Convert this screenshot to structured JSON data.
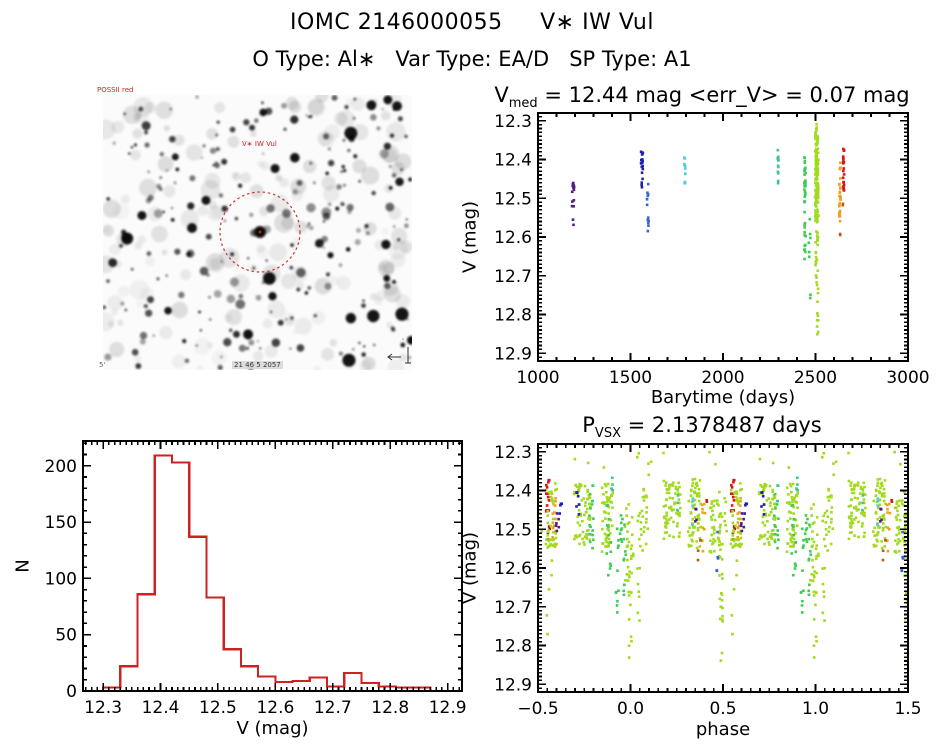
{
  "page": {
    "title": "IOMC 2146000055     V∗ IW Vul",
    "subtitle": "O Type: Al∗   Var Type: EA/D   SP Type: A1"
  },
  "colors": {
    "purple": "#501E82",
    "navy": "#1E1EB4",
    "blue": "#3C64D2",
    "cyan": "#55CADC",
    "teal": "#3CC88C",
    "green": "#3CCC50",
    "chartreuse": "#A2DA1E",
    "orange": "#EFA01E",
    "darkorange": "#BE5A14",
    "red": "#DC1414",
    "darkred": "#A01414",
    "hist": "#CC2222",
    "axis": "#000000",
    "finder_circle": "#CC3333"
  },
  "finder_chart": {
    "label_top_left": "POSSII red",
    "label_target": "V∗ IW Vul",
    "label_bottom": "21 46 5 2057",
    "label_scale": "5'"
  },
  "chart_data": [
    {
      "type": "scatter",
      "name": "lightcurve",
      "title": {
        "base": "V",
        "sub": "med",
        "rest": " = 12.44 mag <err_V> = 0.07 mag"
      },
      "xlabel": "Barytime (days)",
      "ylabel": "V (mag)",
      "xlim": [
        1000,
        3000
      ],
      "ylim": [
        12.28,
        12.92
      ],
      "y_inverted_mag_axis": true,
      "xticks": {
        "vals": [
          1000,
          1500,
          2000,
          2500,
          3000
        ],
        "labels": [
          "1000",
          "1500",
          "2000",
          "2500",
          "3000"
        ],
        "minor": 100
      },
      "yticks": {
        "vals": [
          12.3,
          12.4,
          12.5,
          12.6,
          12.7,
          12.8,
          12.9
        ],
        "labels": [
          "12.3",
          "12.4",
          "12.5",
          "12.6",
          "12.7",
          "12.8",
          "12.9"
        ],
        "minor": 0.01
      },
      "clusters": [
        {
          "x": 1190,
          "dx": 6,
          "y": [
            12.455,
            12.535
          ],
          "n": 13,
          "c": "purple"
        },
        {
          "x": 1191,
          "dx": 3,
          "y": [
            12.555,
            12.575
          ],
          "n": 2,
          "c": "purple"
        },
        {
          "x": 1562,
          "dx": 5,
          "y": [
            12.375,
            12.43
          ],
          "n": 14,
          "c": "navy"
        },
        {
          "x": 1563,
          "dx": 4,
          "y": [
            12.43,
            12.475
          ],
          "n": 5,
          "c": "navy"
        },
        {
          "x": 1594,
          "dx": 3,
          "y": [
            12.46,
            12.5
          ],
          "n": 4,
          "c": "blue"
        },
        {
          "x": 1596,
          "dx": 3,
          "y": [
            12.545,
            12.585
          ],
          "n": 6,
          "c": "blue"
        },
        {
          "x": 1589,
          "dx": 2,
          "y": [
            12.5,
            12.53
          ],
          "n": 2,
          "c": "blue"
        },
        {
          "x": 1794,
          "dx": 4,
          "y": [
            12.385,
            12.465
          ],
          "n": 11,
          "c": "cyan"
        },
        {
          "x": 2297,
          "dx": 4,
          "y": [
            12.375,
            12.44
          ],
          "n": 10,
          "c": "teal"
        },
        {
          "x": 2299,
          "dx": 2,
          "y": [
            12.455,
            12.47
          ],
          "n": 2,
          "c": "teal"
        },
        {
          "x": 2443,
          "dx": 4,
          "y": [
            12.39,
            12.52
          ],
          "n": 28,
          "c": "green"
        },
        {
          "x": 2443,
          "dx": 4,
          "y": [
            12.52,
            12.66
          ],
          "n": 13,
          "c": "green"
        },
        {
          "x": 2468,
          "dx": 5,
          "y": [
            12.55,
            12.78
          ],
          "n": 8,
          "c": "green"
        },
        {
          "x": 2507,
          "dx": 9,
          "y": [
            12.33,
            12.56
          ],
          "n": 150,
          "c": "chartreuse"
        },
        {
          "x": 2507,
          "dx": 7,
          "y": [
            12.56,
            12.72
          ],
          "n": 22,
          "c": "chartreuse"
        },
        {
          "x": 2510,
          "dx": 5,
          "y": [
            12.72,
            12.86
          ],
          "n": 11,
          "c": "chartreuse"
        },
        {
          "x": 2505,
          "dx": 4,
          "y": [
            12.305,
            12.33
          ],
          "n": 4,
          "c": "chartreuse"
        },
        {
          "x": 2632,
          "dx": 4,
          "y": [
            12.4,
            12.565
          ],
          "n": 28,
          "c": "orange"
        },
        {
          "x": 2634,
          "dx": 3,
          "y": [
            12.59,
            12.615
          ],
          "n": 2,
          "c": "darkorange"
        },
        {
          "x": 2652,
          "dx": 3,
          "y": [
            12.355,
            12.48
          ],
          "n": 22,
          "c": "red"
        },
        {
          "x": 2647,
          "dx": 2,
          "y": [
            12.5,
            12.52
          ],
          "n": 2,
          "c": "darkorange"
        }
      ]
    },
    {
      "type": "histogram",
      "name": "v-distribution",
      "xlabel": "V (mag)",
      "ylabel": "N",
      "xlim": [
        12.265,
        12.925
      ],
      "ylim": [
        0,
        222
      ],
      "bin_start": 12.3,
      "bin_width": 0.03,
      "counts": [
        3,
        22,
        86,
        209,
        203,
        137,
        83,
        37,
        22,
        13,
        8,
        9,
        12,
        4,
        16,
        7,
        4,
        3,
        3
      ],
      "xticks": {
        "vals": [
          12.3,
          12.4,
          12.5,
          12.6,
          12.7,
          12.8,
          12.9
        ],
        "labels": [
          "12.3",
          "12.4",
          "12.5",
          "12.6",
          "12.7",
          "12.8",
          "12.9"
        ],
        "minor": 0.01
      },
      "yticks": {
        "vals": [
          0,
          50,
          100,
          150,
          200
        ],
        "labels": [
          "0",
          "50",
          "100",
          "150",
          "200"
        ],
        "minor": 10
      }
    },
    {
      "type": "scatter",
      "name": "phase-folded",
      "title": {
        "base": "P",
        "sub": "VSX",
        "rest": " = 2.1378487 days"
      },
      "xlabel": "phase",
      "ylabel": "V (mag)",
      "xlim": [
        -0.5,
        1.5
      ],
      "ylim": [
        12.28,
        12.92
      ],
      "y_inverted_mag_axis": true,
      "repeat_period": 1,
      "xticks": {
        "vals": [
          -0.5,
          0.0,
          0.5,
          1.0,
          1.5
        ],
        "labels": [
          "−0.5",
          "0.0",
          "0.5",
          "1.0",
          "1.5"
        ],
        "minor": 0.05
      },
      "yticks": {
        "vals": [
          12.3,
          12.4,
          12.5,
          12.6,
          12.7,
          12.8,
          12.9
        ],
        "labels": [
          "12.3",
          "12.4",
          "12.5",
          "12.6",
          "12.7",
          "12.8",
          "12.9"
        ],
        "minor": 0.01
      },
      "clusters": [
        {
          "x": 0.487,
          "dx": 0.01,
          "y": [
            12.44,
            12.7
          ],
          "n": 20,
          "c": "chartreuse"
        },
        {
          "x": 0.492,
          "dx": 0.007,
          "y": [
            12.7,
            12.84
          ],
          "n": 9,
          "c": "chartreuse"
        },
        {
          "x": 0.478,
          "dx": 0.01,
          "y": [
            12.39,
            12.55
          ],
          "n": 10,
          "c": "chartreuse"
        },
        {
          "x": 0.468,
          "dx": 0.006,
          "y": [
            12.5,
            12.66
          ],
          "n": 5,
          "c": "blue"
        },
        {
          "x": 0.515,
          "dx": 0.008,
          "y": [
            12.42,
            12.52
          ],
          "n": 6,
          "c": "chartreuse"
        },
        {
          "x": 0.555,
          "dx": 0.012,
          "y": [
            12.37,
            12.46
          ],
          "n": 13,
          "c": "red"
        },
        {
          "x": 0.558,
          "dx": 0.008,
          "y": [
            12.46,
            12.53
          ],
          "n": 5,
          "c": "darkred"
        },
        {
          "x": 0.585,
          "dx": 0.01,
          "y": [
            12.4,
            12.55
          ],
          "n": 15,
          "c": "orange"
        },
        {
          "x": 0.572,
          "dx": 0.03,
          "y": [
            12.38,
            12.55
          ],
          "n": 40,
          "c": "chartreuse"
        },
        {
          "x": 0.605,
          "dx": 0.008,
          "y": [
            12.45,
            12.53
          ],
          "n": 6,
          "c": "purple"
        },
        {
          "x": 0.623,
          "dx": 0.006,
          "y": [
            12.43,
            12.5
          ],
          "n": 4,
          "c": "navy"
        },
        {
          "x": 0.565,
          "dx": 0.02,
          "y": [
            12.56,
            12.79
          ],
          "n": 5,
          "c": "chartreuse"
        },
        {
          "x": 0.74,
          "dx": 0.045,
          "y": [
            12.38,
            12.54
          ],
          "n": 65,
          "c": "chartreuse"
        },
        {
          "x": 0.716,
          "dx": 0.008,
          "y": [
            12.39,
            12.47
          ],
          "n": 6,
          "c": "navy"
        },
        {
          "x": 0.788,
          "dx": 0.012,
          "y": [
            12.4,
            12.55
          ],
          "n": 13,
          "c": "green"
        },
        {
          "x": 0.8,
          "dx": 0.007,
          "y": [
            12.37,
            12.43
          ],
          "n": 5,
          "c": "teal"
        },
        {
          "x": 0.875,
          "dx": 0.03,
          "y": [
            12.38,
            12.56
          ],
          "n": 50,
          "c": "chartreuse"
        },
        {
          "x": 0.883,
          "dx": 0.012,
          "y": [
            12.42,
            12.62
          ],
          "n": 14,
          "c": "green"
        },
        {
          "x": 0.928,
          "dx": 0.01,
          "y": [
            12.47,
            12.72
          ],
          "n": 9,
          "c": "green"
        },
        {
          "x": 0.9,
          "dx": 0.006,
          "y": [
            12.36,
            12.4
          ],
          "n": 4,
          "c": "teal"
        },
        {
          "x": -0.018,
          "dx": 0.012,
          "y": [
            12.43,
            12.66
          ],
          "n": 18,
          "c": "chartreuse"
        },
        {
          "x": -0.002,
          "dx": 0.008,
          "y": [
            12.6,
            12.87
          ],
          "n": 13,
          "c": "chartreuse"
        },
        {
          "x": -0.032,
          "dx": 0.009,
          "y": [
            12.45,
            12.72
          ],
          "n": 9,
          "c": "green"
        },
        {
          "x": -0.055,
          "dx": 0.012,
          "y": [
            12.4,
            12.56
          ],
          "n": 10,
          "c": "green"
        },
        {
          "x": 0.013,
          "dx": 0.01,
          "y": [
            12.44,
            12.6
          ],
          "n": 8,
          "c": "chartreuse"
        },
        {
          "x": 0.046,
          "dx": 0.008,
          "y": [
            12.42,
            12.76
          ],
          "n": 12,
          "c": "chartreuse"
        },
        {
          "x": 0.075,
          "dx": 0.02,
          "y": [
            12.39,
            12.56
          ],
          "n": 22,
          "c": "chartreuse"
        },
        {
          "x": 0.225,
          "dx": 0.045,
          "y": [
            12.375,
            12.53
          ],
          "n": 70,
          "c": "chartreuse"
        },
        {
          "x": 0.253,
          "dx": 0.008,
          "y": [
            12.4,
            12.46
          ],
          "n": 3,
          "c": "teal"
        },
        {
          "x": 0.345,
          "dx": 0.035,
          "y": [
            12.37,
            12.55
          ],
          "n": 60,
          "c": "chartreuse"
        },
        {
          "x": 0.333,
          "dx": 0.006,
          "y": [
            12.4,
            12.5
          ],
          "n": 5,
          "c": "cyan"
        },
        {
          "x": 0.352,
          "dx": 0.006,
          "y": [
            12.43,
            12.49
          ],
          "n": 4,
          "c": "purple"
        },
        {
          "x": 0.395,
          "dx": 0.008,
          "y": [
            12.42,
            12.58
          ],
          "n": 9,
          "c": "orange"
        },
        {
          "x": 0.41,
          "dx": 0.004,
          "y": [
            12.4,
            12.43
          ],
          "n": 2,
          "c": "red"
        },
        {
          "x": 0.372,
          "dx": 0.01,
          "y": [
            12.5,
            12.6
          ],
          "n": 4,
          "c": "darkorange"
        },
        {
          "x": 0.443,
          "dx": 0.015,
          "y": [
            12.39,
            12.56
          ],
          "n": 26,
          "c": "chartreuse"
        },
        {
          "x": 0.05,
          "dx": 0.45,
          "y": [
            12.3,
            12.36
          ],
          "n": 12,
          "c": "chartreuse"
        }
      ]
    }
  ]
}
